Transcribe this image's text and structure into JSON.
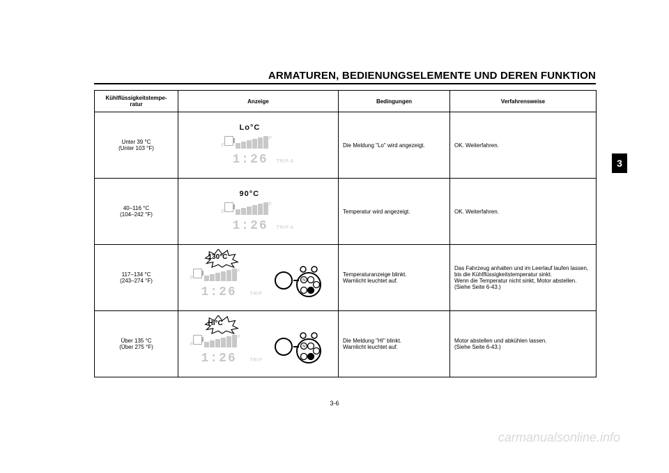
{
  "page": {
    "title": "ARMATUREN, BEDIENUNGSELEMENTE UND DEREN FUNKTION",
    "number": "3-6",
    "chapter_tab": "3",
    "watermark": "carmanualsonline.info"
  },
  "table": {
    "headers": {
      "temp": "Kühlflüssigkeitstempe-\nratur",
      "display": "Anzeige",
      "conditions": "Bedingungen",
      "action": "Verfahrensweise"
    },
    "rows": [
      {
        "temp_line1": "Unter 39 °C",
        "temp_line2": "(Unter 103 °F)",
        "lcd_temp": "Lo°C",
        "clock": "1:26",
        "trip": "TRIP A",
        "show_cluster": false,
        "burst": false,
        "conditions": "Die Meldung \"Lo\" wird angezeigt.",
        "action": "OK. Weiterfahren."
      },
      {
        "temp_line1": "40–116 °C",
        "temp_line2": "(104–242 °F)",
        "lcd_temp": "90°C",
        "clock": "1:26",
        "trip": "TRIP A",
        "show_cluster": false,
        "burst": false,
        "conditions": "Temperatur wird angezeigt.",
        "action": "OK. Weiterfahren."
      },
      {
        "temp_line1": "117–134 °C",
        "temp_line2": "(243–274 °F)",
        "lcd_temp": "130°C",
        "clock": "1:26",
        "trip": "TRIP",
        "show_cluster": true,
        "burst": true,
        "conditions": "Temperaturanzeige blinkt.\nWarnlicht leuchtet auf.",
        "action": "Das Fahrzeug anhalten und im Leerlauf laufen lassen, bis die Kühlflüssigkeitstemperatur sinkt.\nWenn die Temperatur nicht sinkt, Motor abstellen. (Siehe Seite 6-43.)"
      },
      {
        "temp_line1": "Über 135 °C",
        "temp_line2": "(Über 275 °F)",
        "lcd_temp": "HI°C",
        "clock": "1:26",
        "trip": "TRIP",
        "show_cluster": true,
        "burst": true,
        "conditions": "Die Meldung \"HI\" blinkt.\nWarnlicht leuchtet auf.",
        "action": "Motor abstellen und abkühlen lassen.\n(Siehe Seite 6-43.)"
      }
    ]
  },
  "style": {
    "faded_color": "#c8c8c8",
    "text_color": "#000000",
    "border_color": "#000000",
    "background": "#ffffff",
    "watermark_color": "#d9d9d9"
  }
}
